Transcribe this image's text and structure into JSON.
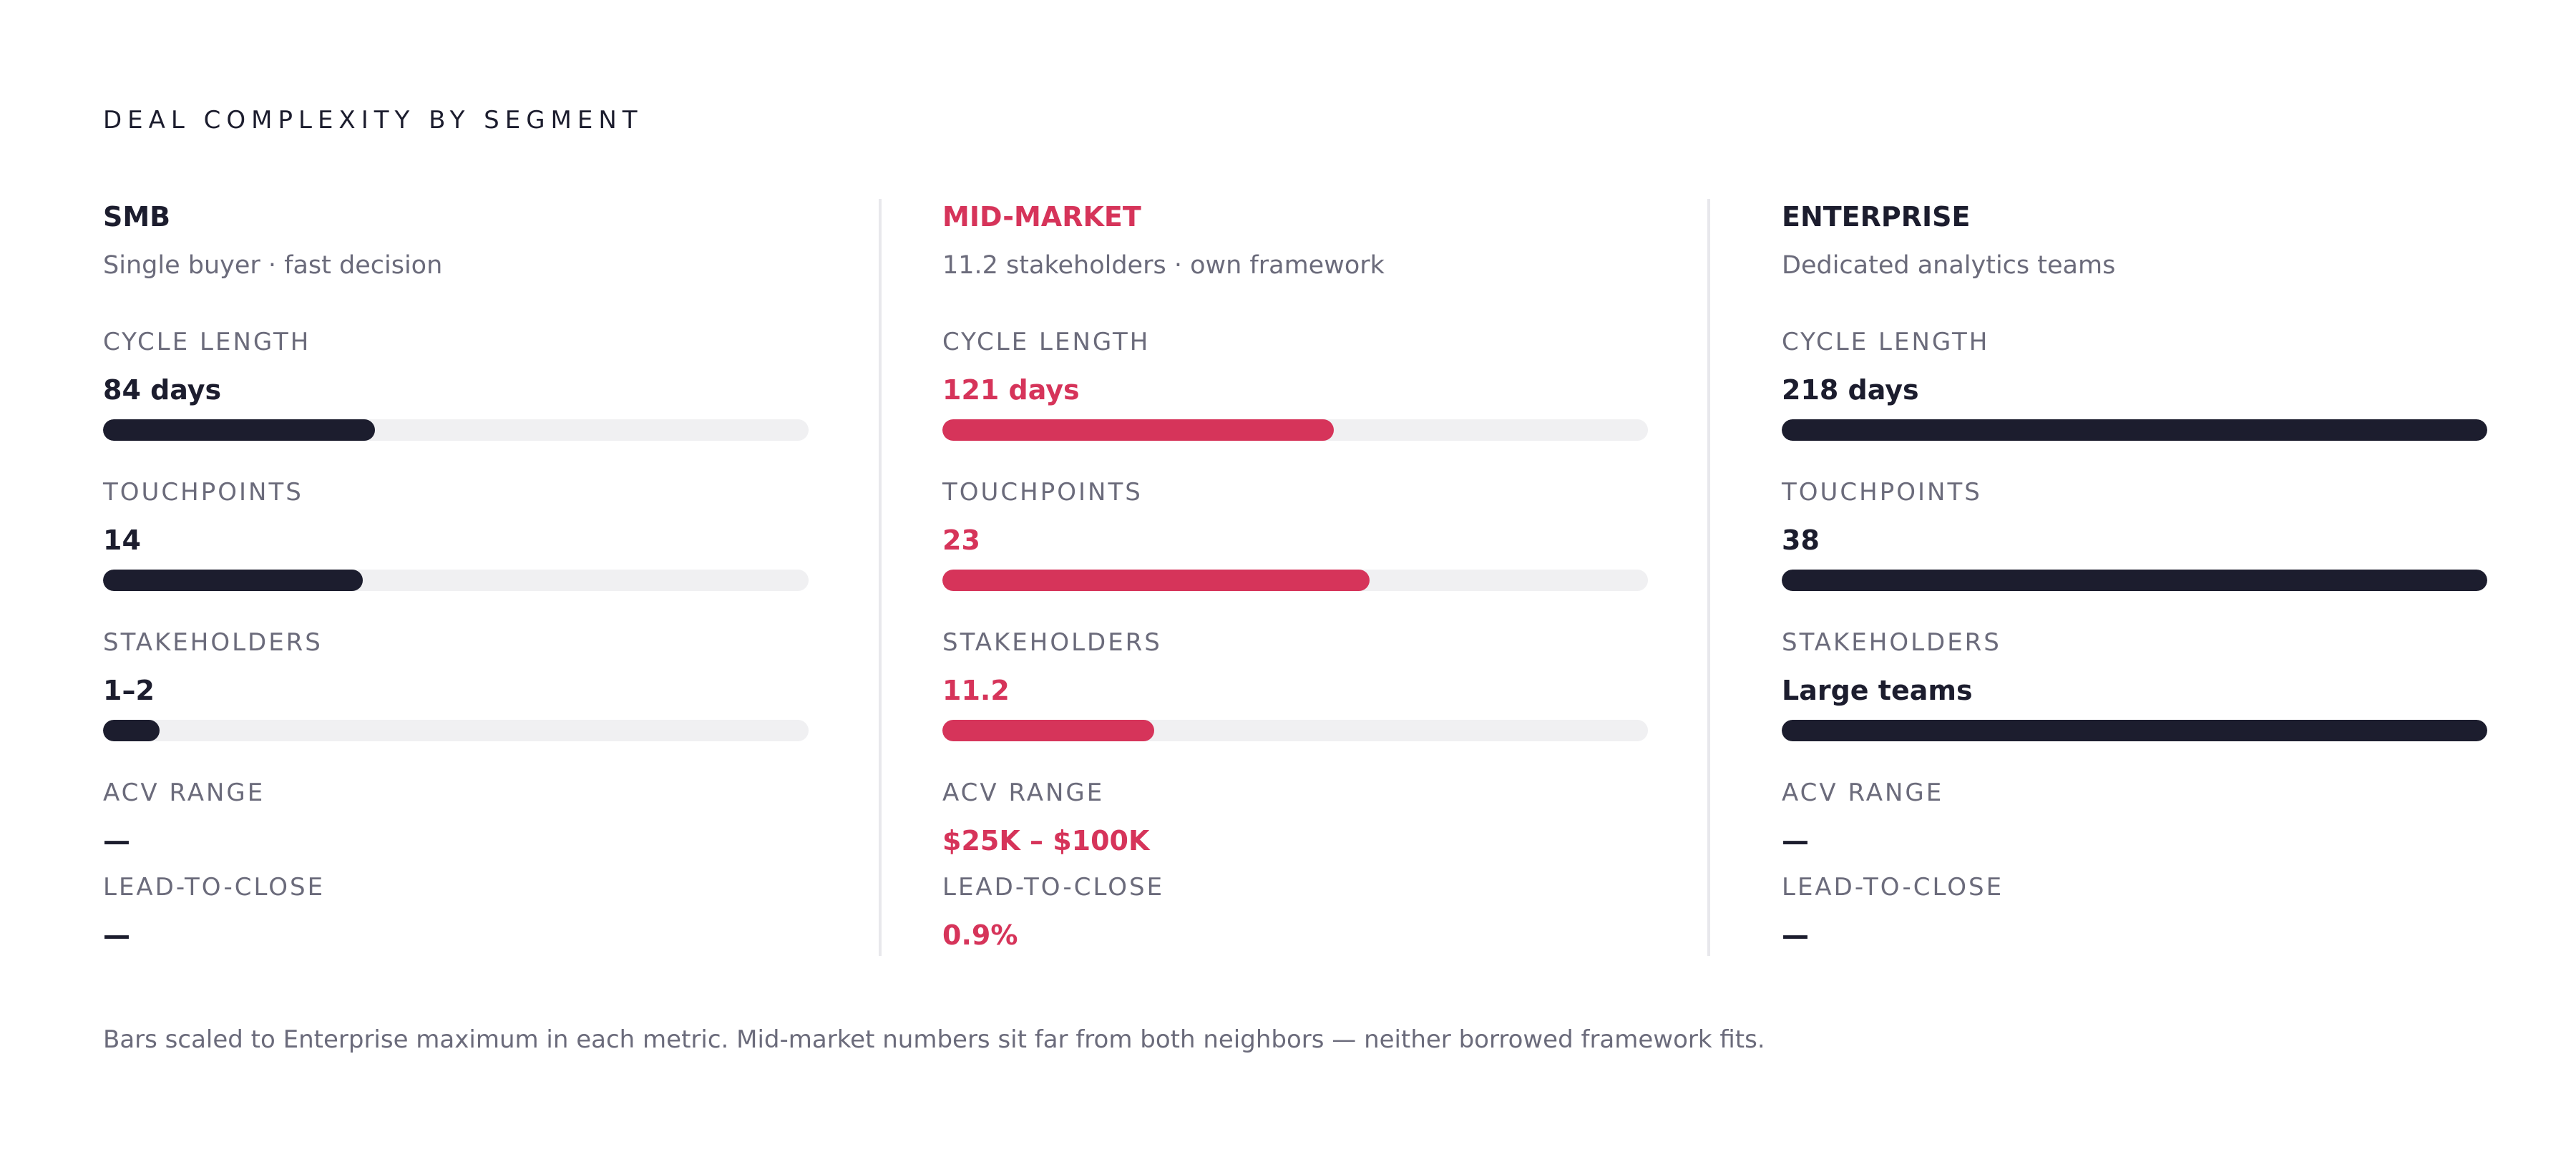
{
  "title": "DEAL COMPLEXITY BY SEGMENT",
  "footnote": "Bars scaled to Enterprise maximum in each metric. Mid-market numbers sit far from both neighbors — neither borrowed framework fits.",
  "colors": {
    "dark": "#1c1d2e",
    "accent": "#d6345a",
    "muted": "#6b6b7b",
    "track": "#f0f0f2"
  },
  "chart_data": {
    "type": "bar",
    "title": "DEAL COMPLEXITY BY SEGMENT",
    "segments": [
      {
        "name": "SMB",
        "subtitle": "Single buyer · fast decision",
        "highlight": false,
        "metrics": {
          "cycle_length": {
            "label": "CYCLE LENGTH",
            "display": "84 days",
            "value": 84,
            "max": 218
          },
          "touchpoints": {
            "label": "TOUCHPOINTS",
            "display": "14",
            "value": 14,
            "max": 38
          },
          "stakeholders": {
            "label": "STAKEHOLDERS",
            "display": "1–2",
            "fraction": 0.08
          },
          "acv_range": {
            "label": "ACV RANGE",
            "display": "—"
          },
          "lead_to_close": {
            "label": "LEAD-TO-CLOSE",
            "display": "—"
          }
        }
      },
      {
        "name": "MID-MARKET",
        "subtitle": "11.2 stakeholders · own framework",
        "highlight": true,
        "metrics": {
          "cycle_length": {
            "label": "CYCLE LENGTH",
            "display": "121 days",
            "value": 121,
            "max": 218
          },
          "touchpoints": {
            "label": "TOUCHPOINTS",
            "display": "23",
            "value": 23,
            "max": 38
          },
          "stakeholders": {
            "label": "STAKEHOLDERS",
            "display": "11.2",
            "fraction": 0.3
          },
          "acv_range": {
            "label": "ACV RANGE",
            "display": "$25K – $100K"
          },
          "lead_to_close": {
            "label": "LEAD-TO-CLOSE",
            "display": "0.9%"
          }
        }
      },
      {
        "name": "ENTERPRISE",
        "subtitle": "Dedicated analytics teams",
        "highlight": false,
        "metrics": {
          "cycle_length": {
            "label": "CYCLE LENGTH",
            "display": "218 days",
            "value": 218,
            "max": 218
          },
          "touchpoints": {
            "label": "TOUCHPOINTS",
            "display": "38",
            "value": 38,
            "max": 38
          },
          "stakeholders": {
            "label": "STAKEHOLDERS",
            "display": "Large teams",
            "fraction": 1.0
          },
          "acv_range": {
            "label": "ACV RANGE",
            "display": "—"
          },
          "lead_to_close": {
            "label": "LEAD-TO-CLOSE",
            "display": "—"
          }
        }
      }
    ]
  }
}
